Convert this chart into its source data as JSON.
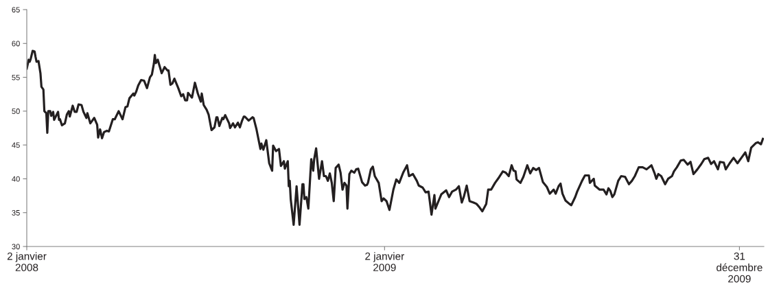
{
  "chart_data": {
    "type": "line",
    "x": [
      "2008-01-02",
      "2008-01-04",
      "2008-01-05",
      "2008-01-06",
      "2008-01-08",
      "2008-01-10",
      "2008-01-11",
      "2008-01-12",
      "2008-01-14",
      "2008-01-16",
      "2008-01-17",
      "2008-01-19",
      "2008-01-20",
      "2008-01-22",
      "2008-01-23",
      "2008-01-24",
      "2008-01-26",
      "2008-01-27",
      "2008-01-29",
      "2008-01-30",
      "2008-02-01",
      "2008-02-03",
      "2008-02-04",
      "2008-02-05",
      "2008-02-07",
      "2008-02-10",
      "2008-02-12",
      "2008-02-14",
      "2008-02-15",
      "2008-02-18",
      "2008-02-20",
      "2008-02-22",
      "2008-02-24",
      "2008-02-27",
      "2008-02-29",
      "2008-03-03",
      "2008-03-04",
      "2008-03-07",
      "2008-03-11",
      "2008-03-14",
      "2008-03-15",
      "2008-03-17",
      "2008-03-19",
      "2008-03-21",
      "2008-03-24",
      "2008-03-26",
      "2008-03-30",
      "2008-04-01",
      "2008-04-05",
      "2008-04-09",
      "2008-04-12",
      "2008-04-14",
      "2008-04-16",
      "2008-04-20",
      "2008-04-21",
      "2008-04-23",
      "2008-04-25",
      "2008-04-28",
      "2008-05-01",
      "2008-05-04",
      "2008-05-07",
      "2008-05-09",
      "2008-05-11",
      "2008-05-12",
      "2008-05-13",
      "2008-05-15",
      "2008-05-17",
      "2008-05-19",
      "2008-05-22",
      "2008-05-25",
      "2008-05-26",
      "2008-05-28",
      "2008-05-30",
      "2008-06-01",
      "2008-06-05",
      "2008-06-08",
      "2008-06-10",
      "2008-06-12",
      "2008-06-14",
      "2008-06-15",
      "2008-06-19",
      "2008-06-22",
      "2008-06-25",
      "2008-06-28",
      "2008-06-29",
      "2008-07-01",
      "2008-07-04",
      "2008-07-06",
      "2008-07-09",
      "2008-07-12",
      "2008-07-14",
      "2008-07-15",
      "2008-07-17",
      "2008-07-20",
      "2008-07-21",
      "2008-07-23",
      "2008-07-27",
      "2008-07-28",
      "2008-07-31",
      "2008-08-02",
      "2008-08-05",
      "2008-08-07",
      "2008-08-09",
      "2008-08-11",
      "2008-08-12",
      "2008-08-16",
      "2008-08-20",
      "2008-08-21",
      "2008-08-24",
      "2008-08-28",
      "2008-08-29",
      "2008-08-31",
      "2008-09-03",
      "2008-09-06",
      "2008-09-09",
      "2008-09-10",
      "2008-09-13",
      "2008-09-16",
      "2008-09-18",
      "2008-09-21",
      "2008-09-22",
      "2008-09-25",
      "2008-09-26",
      "2008-09-27",
      "2008-09-28",
      "2008-10-01",
      "2008-10-04",
      "2008-10-07",
      "2008-10-10",
      "2008-10-11",
      "2008-10-12",
      "2008-10-14",
      "2008-10-16",
      "2008-10-19",
      "2008-10-21",
      "2008-10-22",
      "2008-10-24",
      "2008-10-27",
      "2008-10-30",
      "2008-11-01",
      "2008-11-03",
      "2008-11-05",
      "2008-11-07",
      "2008-11-09",
      "2008-11-11",
      "2008-11-13",
      "2008-11-16",
      "2008-11-18",
      "2008-11-20",
      "2008-11-22",
      "2008-11-24",
      "2008-11-25",
      "2008-11-27",
      "2008-11-29",
      "2008-12-02",
      "2008-12-04",
      "2008-12-06",
      "2008-12-10",
      "2008-12-13",
      "2008-12-15",
      "2008-12-16",
      "2008-12-19",
      "2008-12-21",
      "2008-12-23",
      "2008-12-27",
      "2008-12-30",
      "2009-01-01",
      "2009-01-04",
      "2009-01-07",
      "2009-01-11",
      "2009-01-14",
      "2009-01-17",
      "2009-01-21",
      "2009-01-25",
      "2009-01-27",
      "2009-01-31",
      "2009-02-04",
      "2009-02-06",
      "2009-02-10",
      "2009-02-13",
      "2009-02-16",
      "2009-02-19",
      "2009-02-22",
      "2009-02-23",
      "2009-02-27",
      "2009-03-01",
      "2009-03-06",
      "2009-03-09",
      "2009-03-12",
      "2009-03-16",
      "2009-03-19",
      "2009-03-22",
      "2009-03-24",
      "2009-03-27",
      "2009-03-30",
      "2009-04-03",
      "2009-04-06",
      "2009-04-09",
      "2009-04-12",
      "2009-04-16",
      "2009-04-18",
      "2009-04-21",
      "2009-04-25",
      "2009-04-29",
      "2009-05-03",
      "2009-05-06",
      "2009-05-09",
      "2009-05-12",
      "2009-05-14",
      "2009-05-16",
      "2009-05-17",
      "2009-05-21",
      "2009-05-24",
      "2009-05-28",
      "2009-05-31",
      "2009-06-03",
      "2009-06-06",
      "2009-06-09",
      "2009-06-13",
      "2009-06-17",
      "2009-06-20",
      "2009-06-24",
      "2009-06-26",
      "2009-06-29",
      "2009-07-01",
      "2009-07-03",
      "2009-07-06",
      "2009-07-10",
      "2009-07-12",
      "2009-07-16",
      "2009-07-18",
      "2009-07-23",
      "2009-07-26",
      "2009-07-30",
      "2009-07-31",
      "2009-08-04",
      "2009-08-05",
      "2009-08-10",
      "2009-08-14",
      "2009-08-17",
      "2009-08-19",
      "2009-08-21",
      "2009-08-23",
      "2009-08-25",
      "2009-08-29",
      "2009-09-01",
      "2009-09-05",
      "2009-09-09",
      "2009-09-12",
      "2009-09-15",
      "2009-09-19",
      "2009-09-23",
      "2009-09-27",
      "2009-10-02",
      "2009-10-05",
      "2009-10-07",
      "2009-10-09",
      "2009-10-12",
      "2009-10-16",
      "2009-10-19",
      "2009-10-23",
      "2009-10-25",
      "2009-10-28",
      "2009-11-01",
      "2009-11-04",
      "2009-11-08",
      "2009-11-11",
      "2009-11-14",
      "2009-11-18",
      "2009-11-22",
      "2009-11-25",
      "2009-11-29",
      "2009-12-02",
      "2009-12-05",
      "2009-12-09",
      "2009-12-11",
      "2009-12-15",
      "2009-12-17",
      "2009-12-21",
      "2009-12-25",
      "2009-12-29",
      "2010-01-02",
      "2010-01-06",
      "2010-01-09",
      "2010-01-12",
      "2010-01-17",
      "2010-01-19",
      "2010-01-22",
      "2010-01-24"
    ],
    "series": [
      {
        "color": "#231f20",
        "values": [
          56.3,
          57.6,
          57.3,
          57.7,
          58.9,
          58.8,
          58.0,
          57.3,
          57.4,
          55.6,
          53.6,
          53.2,
          50.0,
          49.7,
          46.8,
          50.0,
          50.0,
          49.3,
          49.9,
          48.7,
          49.3,
          49.9,
          48.7,
          48.8,
          47.9,
          48.2,
          49.5,
          50.0,
          49.2,
          50.8,
          49.9,
          49.9,
          51.0,
          50.9,
          49.9,
          49.0,
          49.7,
          48.2,
          49.0,
          48.0,
          46.1,
          47.3,
          46.0,
          46.9,
          47.1,
          47.0,
          48.8,
          48.8,
          50.0,
          48.8,
          50.6,
          50.7,
          51.9,
          52.6,
          52.3,
          52.9,
          53.8,
          54.6,
          54.5,
          53.4,
          55.0,
          55.4,
          57.0,
          58.3,
          57.1,
          57.6,
          56.6,
          55.6,
          56.5,
          56.0,
          56.0,
          53.9,
          54.1,
          54.8,
          53.4,
          52.2,
          52.5,
          51.6,
          51.6,
          52.7,
          52.0,
          54.2,
          52.6,
          51.4,
          52.6,
          50.9,
          50.2,
          49.5,
          47.2,
          47.6,
          49.1,
          49.1,
          47.8,
          49.0,
          48.8,
          49.4,
          48.2,
          47.5,
          48.2,
          47.6,
          48.3,
          47.6,
          48.5,
          49.2,
          49.2,
          48.6,
          49.1,
          49.0,
          47.3,
          44.4,
          45.2,
          44.3,
          45.7,
          42.3,
          41.2,
          44.9,
          44.1,
          44.4,
          41.9,
          42.6,
          41.5,
          42.6,
          38.9,
          39.7,
          37.0,
          33.2,
          38.9,
          33.2,
          39.2,
          39.2,
          37.0,
          37.3,
          35.6,
          42.9,
          41.2,
          42.9,
          44.5,
          40.0,
          42.6,
          40.4,
          40.4,
          39.7,
          40.8,
          39.4,
          36.7,
          41.6,
          42.1,
          40.9,
          38.4,
          39.4,
          39.0,
          35.6,
          40.7,
          41.2,
          40.9,
          41.4,
          41.5,
          39.5,
          39.0,
          39.1,
          39.4,
          41.4,
          41.8,
          40.4,
          39.4,
          36.7,
          37.1,
          36.7,
          35.4,
          38.4,
          39.9,
          39.4,
          40.9,
          42.0,
          40.4,
          40.7,
          39.7,
          39.0,
          38.7,
          38.0,
          38.1,
          34.7,
          37.6,
          35.6,
          37.0,
          37.7,
          38.3,
          37.3,
          38.1,
          38.4,
          38.9,
          36.5,
          37.3,
          39.0,
          36.7,
          36.5,
          36.3,
          35.8,
          35.2,
          36.3,
          38.4,
          38.4,
          39.4,
          40.2,
          41.1,
          40.9,
          40.4,
          42.0,
          41.2,
          41.1,
          39.9,
          39.4,
          40.3,
          42.0,
          40.8,
          41.6,
          41.3,
          41.6,
          39.5,
          38.8,
          37.8,
          38.4,
          37.8,
          38.9,
          39.3,
          37.8,
          36.8,
          36.3,
          36.1,
          37.3,
          38.1,
          39.7,
          40.5,
          40.5,
          39.4,
          40.0,
          39.0,
          38.4,
          38.4,
          37.7,
          38.6,
          38.2,
          37.3,
          37.7,
          39.7,
          40.4,
          40.3,
          39.2,
          39.7,
          40.4,
          41.7,
          41.7,
          41.4,
          42.0,
          40.9,
          40.0,
          40.7,
          40.4,
          39.2,
          40.0,
          40.4,
          41.1,
          41.7,
          42.7,
          42.8,
          42.1,
          42.5,
          40.7,
          41.4,
          42.2,
          42.9,
          43.1,
          42.2,
          42.6,
          41.4,
          42.5,
          42.4,
          41.4,
          42.3,
          43.1,
          42.3,
          43.1,
          43.9,
          42.6,
          44.6,
          45.3,
          45.4,
          45.1,
          45.9
        ]
      }
    ],
    "xlim": [
      "2008-01-02",
      "2010-01-25"
    ],
    "xticks": [
      {
        "value": "2008-01-02",
        "label": "2 janvier\n2008"
      },
      {
        "value": "2009-01-02",
        "label": "2 janvier\n2009"
      },
      {
        "value": "2009-12-31",
        "label": "31\ndécembre\n2009"
      }
    ],
    "ylim": [
      30,
      65
    ],
    "yticks": [
      30,
      35,
      40,
      45,
      50,
      55,
      60,
      65
    ],
    "grid": false,
    "marker": "none",
    "line_style": "solid"
  }
}
